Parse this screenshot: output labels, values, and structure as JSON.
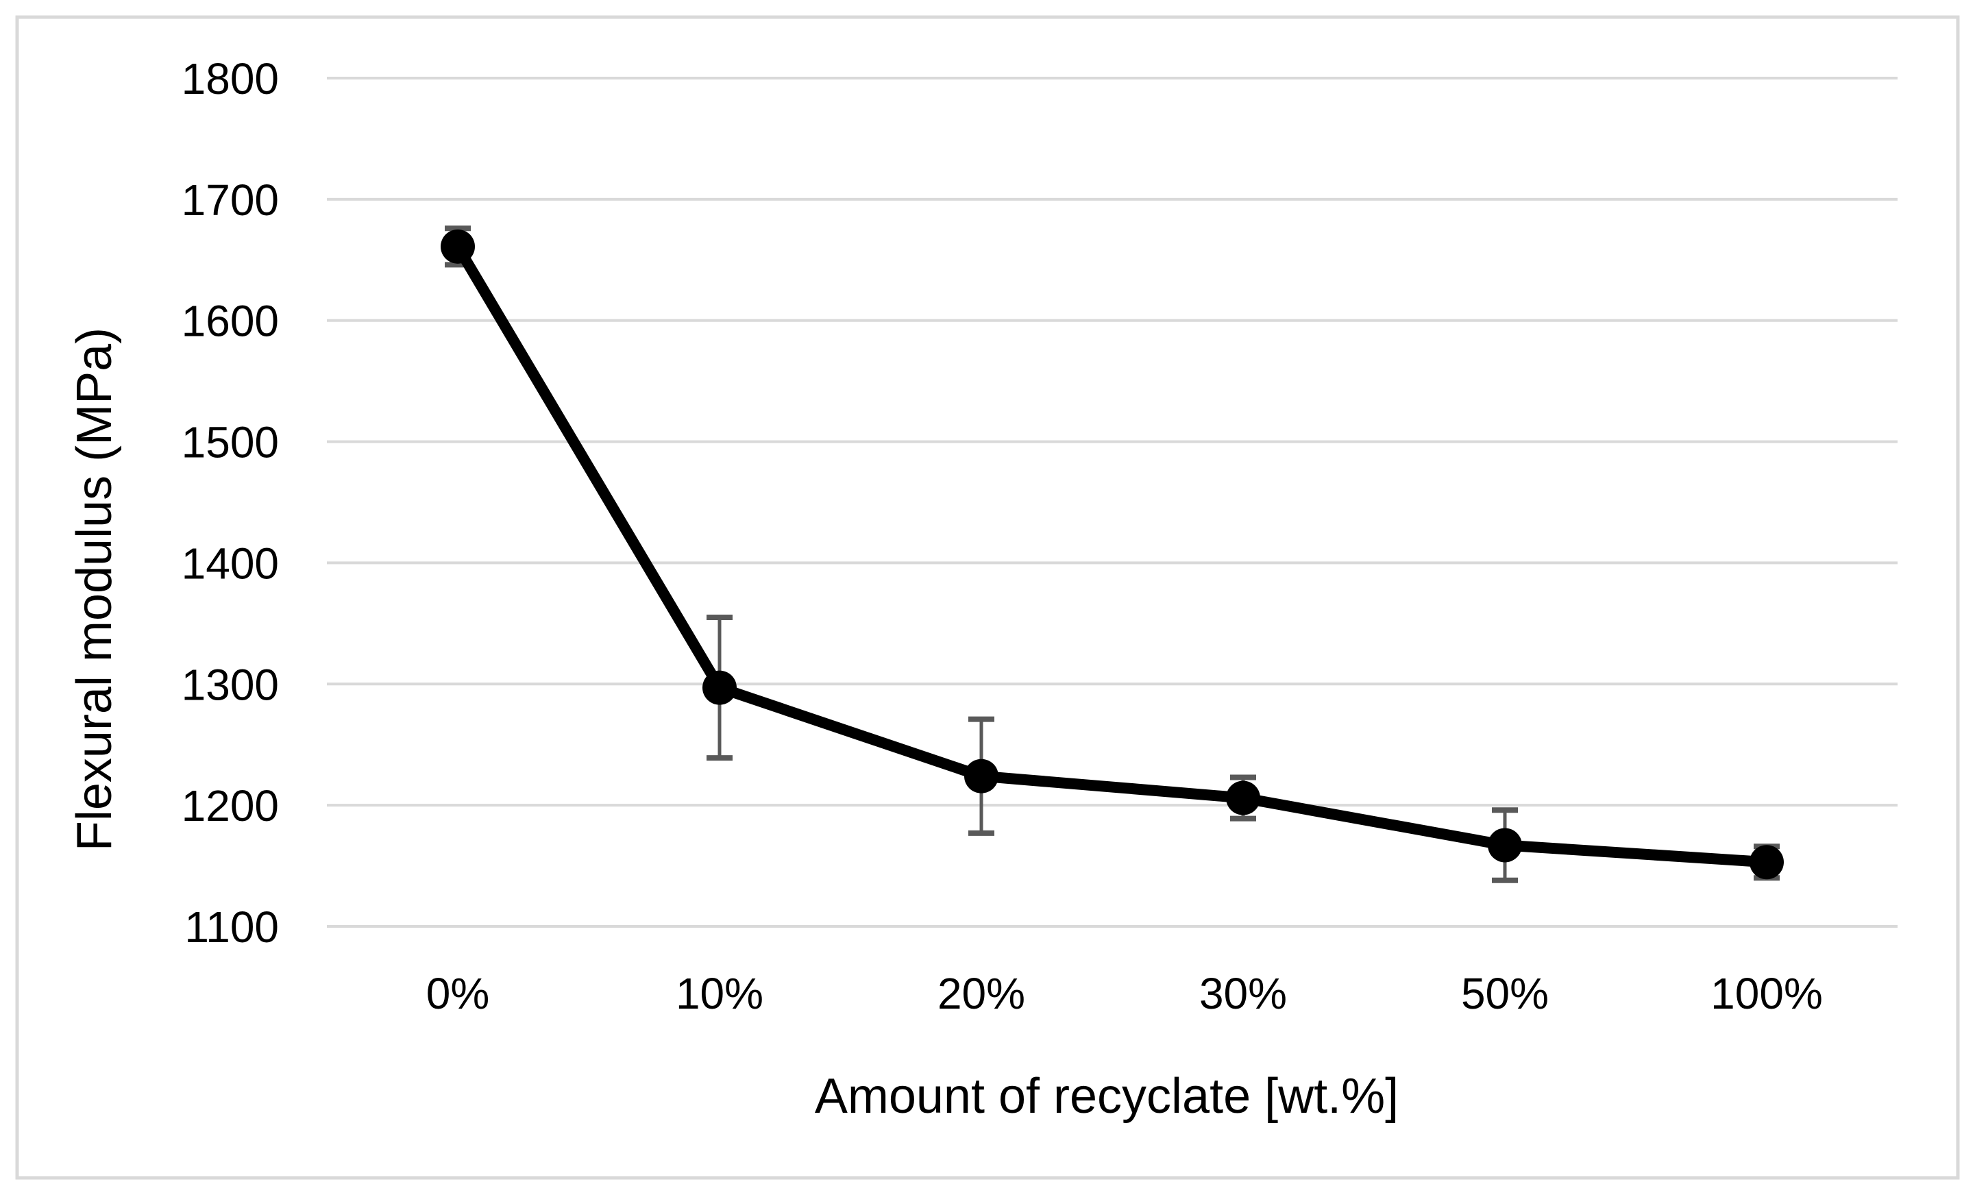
{
  "chart_data": {
    "type": "line",
    "title": "",
    "xlabel": "Amount of recyclate [wt.%]",
    "ylabel": "Flexural modulus (MPa)",
    "categories": [
      "0%",
      "10%",
      "20%",
      "30%",
      "50%",
      "100%"
    ],
    "series": [
      {
        "name": "Flexural modulus",
        "values": [
          1661,
          1297,
          1224,
          1206,
          1167,
          1153
        ],
        "error_bars": [
          15,
          58,
          47,
          17,
          29,
          13
        ]
      }
    ],
    "ylim": [
      1100,
      1800
    ],
    "ytick_step": 100,
    "yticks": [
      1800,
      1700,
      1600,
      1500,
      1400,
      1300,
      1200,
      1100
    ],
    "grid": true,
    "legend_position": "none",
    "colors": {
      "series": "#000000",
      "marker": "#000000",
      "error_bar": "#595959",
      "gridline": "#d9d9d9",
      "frame": "#d9d9d9",
      "text": "#000000",
      "background": "#ffffff"
    }
  }
}
